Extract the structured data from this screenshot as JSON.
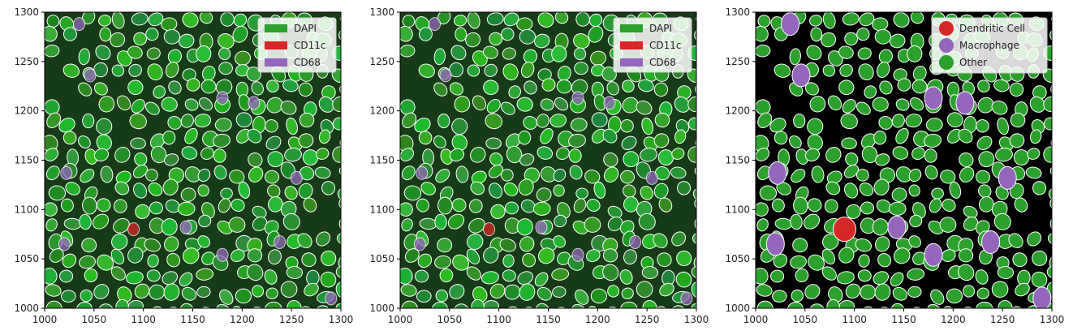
{
  "chart_data": [
    {
      "type": "image",
      "title": "",
      "xlabel": "",
      "ylabel": "",
      "xlim": [
        1000,
        1300
      ],
      "ylim": [
        1000,
        1300
      ],
      "xticks": [
        1000,
        1050,
        1100,
        1150,
        1200,
        1250,
        1300
      ],
      "yticks": [
        1000,
        1050,
        1100,
        1150,
        1200,
        1250,
        1300
      ],
      "xtick_labels": [
        "1000",
        "1050",
        "1100",
        "1150",
        "1200",
        "1250",
        "1300"
      ],
      "ytick_labels": [
        "1000",
        "1050",
        "1100",
        "1150",
        "1200",
        "1250",
        "1300"
      ],
      "legend_position": "top-right",
      "legend": [
        {
          "name": "DAPI",
          "color": "#2ca02c",
          "marker": "patch"
        },
        {
          "name": "CD11c",
          "color": "#d62728",
          "marker": "patch"
        },
        {
          "name": "CD68",
          "color": "#9467bd",
          "marker": "patch"
        }
      ],
      "description_style": "fluorescence composite with thin white cell outlines"
    },
    {
      "type": "image",
      "title": "",
      "xlabel": "",
      "ylabel": "",
      "xlim": [
        1000,
        1300
      ],
      "ylim": [
        1000,
        1300
      ],
      "xticks": [
        1000,
        1050,
        1100,
        1150,
        1200,
        1250,
        1300
      ],
      "yticks": [
        1000,
        1050,
        1100,
        1150,
        1200,
        1250,
        1300
      ],
      "xtick_labels": [
        "1000",
        "1050",
        "1100",
        "1150",
        "1200",
        "1250",
        "1300"
      ],
      "ytick_labels": [
        "1000",
        "1050",
        "1100",
        "1150",
        "1200",
        "1250",
        "1300"
      ],
      "legend_position": "top-right",
      "legend": [
        {
          "name": "DAPI",
          "color": "#2ca02c",
          "marker": "patch"
        },
        {
          "name": "CD11c",
          "color": "#d62728",
          "marker": "patch"
        },
        {
          "name": "CD68",
          "color": "#9467bd",
          "marker": "patch"
        }
      ]
    },
    {
      "type": "image",
      "title": "",
      "xlabel": "",
      "ylabel": "",
      "xlim": [
        1000,
        1300
      ],
      "ylim": [
        1000,
        1300
      ],
      "xticks": [
        1000,
        1050,
        1100,
        1150,
        1200,
        1250,
        1300
      ],
      "yticks": [
        1000,
        1050,
        1100,
        1150,
        1200,
        1250,
        1300
      ],
      "xtick_labels": [
        "1000",
        "1050",
        "1100",
        "1150",
        "1200",
        "1250",
        "1300"
      ],
      "ytick_labels": [
        "1000",
        "1050",
        "1100",
        "1150",
        "1200",
        "1250",
        "1300"
      ],
      "legend_position": "top-right",
      "legend": [
        {
          "name": "Dendritic Cell",
          "color": "#d62728",
          "marker": "circle"
        },
        {
          "name": "Macrophage",
          "color": "#9467bd",
          "marker": "circle"
        },
        {
          "name": "Other",
          "color": "#2ca02c",
          "marker": "circle"
        }
      ],
      "highlighted_cells": [
        {
          "class": "Dendritic Cell",
          "x": 1090,
          "y": 1080
        },
        {
          "class": "Macrophage",
          "x": 1035,
          "y": 1288
        },
        {
          "class": "Macrophage",
          "x": 1143,
          "y": 1082
        },
        {
          "class": "Macrophage",
          "x": 1180,
          "y": 1054
        },
        {
          "class": "Macrophage",
          "x": 1238,
          "y": 1067
        },
        {
          "class": "Macrophage",
          "x": 1255,
          "y": 1132
        },
        {
          "class": "Macrophage",
          "x": 1180,
          "y": 1213
        },
        {
          "class": "Macrophage",
          "x": 1212,
          "y": 1208
        },
        {
          "class": "Macrophage",
          "x": 1290,
          "y": 1010
        },
        {
          "class": "Macrophage",
          "x": 1020,
          "y": 1065
        },
        {
          "class": "Macrophage",
          "x": 1022,
          "y": 1137
        },
        {
          "class": "Macrophage",
          "x": 1046,
          "y": 1236
        }
      ]
    }
  ],
  "colors": {
    "panel_bg_fluor": "#173a17",
    "panel_bg_mask": "#000000",
    "cell_green": "#2ca02c",
    "cell_red": "#d62728",
    "cell_purple": "#9467bd",
    "outline": "#ffffff"
  }
}
